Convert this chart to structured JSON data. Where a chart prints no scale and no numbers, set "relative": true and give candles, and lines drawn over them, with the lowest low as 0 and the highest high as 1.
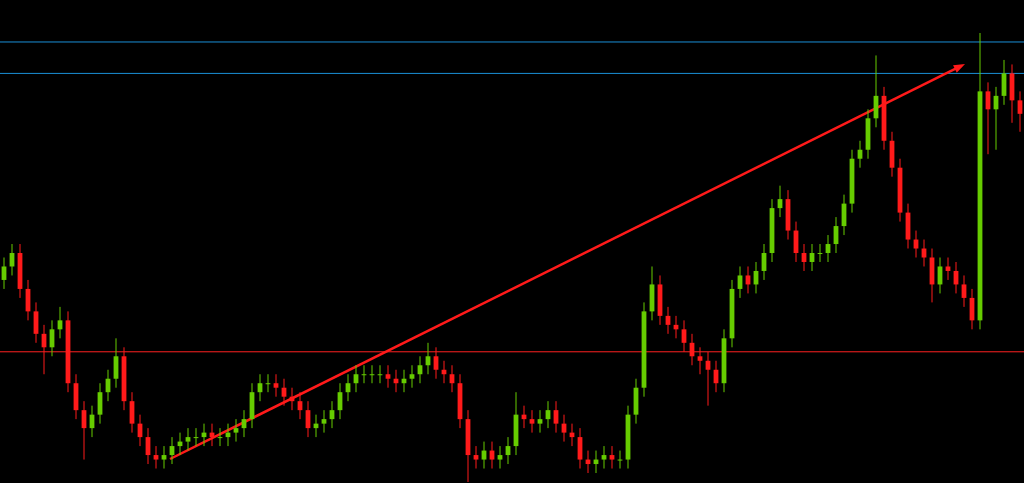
{
  "chart_data": {
    "type": "candlestick",
    "relative": true,
    "categories": [
      null,
      null,
      null,
      null,
      null,
      null,
      null,
      null,
      null,
      null,
      null,
      null,
      null,
      null,
      null,
      null,
      null,
      null,
      null,
      null,
      null,
      null,
      null,
      null,
      null,
      null,
      null,
      null,
      null,
      null,
      null,
      null,
      null,
      null,
      null,
      null,
      null,
      null,
      null,
      null,
      null,
      null,
      null,
      null,
      null,
      null,
      null,
      null,
      null,
      null,
      null,
      null,
      null,
      null,
      null,
      null,
      null,
      null,
      null,
      null,
      null,
      null,
      null,
      null,
      null,
      null,
      null,
      null,
      null,
      null,
      null,
      null,
      null,
      null,
      null,
      null,
      null,
      null,
      null,
      null,
      null,
      null,
      null,
      null,
      null,
      null,
      null,
      null,
      null,
      null,
      null,
      null,
      null,
      null,
      null,
      null,
      null,
      null,
      null,
      null,
      null,
      null,
      null,
      null,
      null,
      null,
      null,
      null,
      null,
      null,
      null,
      null,
      null,
      null,
      null,
      null,
      null,
      null,
      null,
      null,
      null,
      null,
      null,
      null,
      null,
      null,
      null,
      null
    ],
    "ohlc": [
      [
        0.45,
        0.5,
        0.43,
        0.48
      ],
      [
        0.48,
        0.53,
        0.46,
        0.51
      ],
      [
        0.51,
        0.53,
        0.41,
        0.43
      ],
      [
        0.43,
        0.45,
        0.36,
        0.38
      ],
      [
        0.38,
        0.4,
        0.31,
        0.33
      ],
      [
        0.33,
        0.35,
        0.24,
        0.3
      ],
      [
        0.3,
        0.36,
        0.28,
        0.34
      ],
      [
        0.34,
        0.39,
        0.32,
        0.36
      ],
      [
        0.36,
        0.38,
        0.2,
        0.22
      ],
      [
        0.22,
        0.24,
        0.14,
        0.16
      ],
      [
        0.16,
        0.18,
        0.05,
        0.12
      ],
      [
        0.12,
        0.17,
        0.1,
        0.15
      ],
      [
        0.15,
        0.22,
        0.13,
        0.2
      ],
      [
        0.2,
        0.25,
        0.18,
        0.23
      ],
      [
        0.23,
        0.32,
        0.21,
        0.28
      ],
      [
        0.28,
        0.3,
        0.16,
        0.18
      ],
      [
        0.18,
        0.2,
        0.11,
        0.13
      ],
      [
        0.13,
        0.15,
        0.08,
        0.1
      ],
      [
        0.1,
        0.12,
        0.04,
        0.06
      ],
      [
        0.06,
        0.08,
        0.03,
        0.05
      ],
      [
        0.05,
        0.08,
        0.03,
        0.06
      ],
      [
        0.06,
        0.1,
        0.04,
        0.08
      ],
      [
        0.08,
        0.11,
        0.06,
        0.09
      ],
      [
        0.09,
        0.12,
        0.07,
        0.1
      ],
      [
        0.1,
        0.12,
        0.08,
        0.1
      ],
      [
        0.1,
        0.13,
        0.08,
        0.11
      ],
      [
        0.11,
        0.13,
        0.08,
        0.1
      ],
      [
        0.1,
        0.12,
        0.08,
        0.1
      ],
      [
        0.1,
        0.13,
        0.08,
        0.11
      ],
      [
        0.11,
        0.14,
        0.09,
        0.12
      ],
      [
        0.12,
        0.16,
        0.1,
        0.14
      ],
      [
        0.14,
        0.22,
        0.12,
        0.2
      ],
      [
        0.2,
        0.24,
        0.18,
        0.22
      ],
      [
        0.22,
        0.24,
        0.2,
        0.22
      ],
      [
        0.22,
        0.24,
        0.19,
        0.21
      ],
      [
        0.21,
        0.23,
        0.17,
        0.19
      ],
      [
        0.19,
        0.21,
        0.16,
        0.18
      ],
      [
        0.18,
        0.2,
        0.14,
        0.16
      ],
      [
        0.16,
        0.18,
        0.1,
        0.12
      ],
      [
        0.12,
        0.15,
        0.1,
        0.13
      ],
      [
        0.13,
        0.16,
        0.11,
        0.14
      ],
      [
        0.14,
        0.18,
        0.12,
        0.16
      ],
      [
        0.16,
        0.22,
        0.14,
        0.2
      ],
      [
        0.2,
        0.24,
        0.18,
        0.22
      ],
      [
        0.22,
        0.26,
        0.2,
        0.24
      ],
      [
        0.24,
        0.26,
        0.22,
        0.24
      ],
      [
        0.24,
        0.26,
        0.22,
        0.24
      ],
      [
        0.24,
        0.26,
        0.22,
        0.24
      ],
      [
        0.24,
        0.26,
        0.21,
        0.23
      ],
      [
        0.23,
        0.25,
        0.2,
        0.22
      ],
      [
        0.22,
        0.25,
        0.2,
        0.23
      ],
      [
        0.23,
        0.26,
        0.21,
        0.24
      ],
      [
        0.24,
        0.28,
        0.22,
        0.26
      ],
      [
        0.26,
        0.31,
        0.24,
        0.28
      ],
      [
        0.28,
        0.3,
        0.23,
        0.25
      ],
      [
        0.25,
        0.27,
        0.22,
        0.24
      ],
      [
        0.24,
        0.26,
        0.2,
        0.22
      ],
      [
        0.22,
        0.24,
        0.12,
        0.14
      ],
      [
        0.14,
        0.16,
        0.0,
        0.06
      ],
      [
        0.06,
        0.08,
        0.03,
        0.05
      ],
      [
        0.05,
        0.09,
        0.03,
        0.07
      ],
      [
        0.07,
        0.09,
        0.03,
        0.05
      ],
      [
        0.05,
        0.08,
        0.03,
        0.06
      ],
      [
        0.06,
        0.1,
        0.04,
        0.08
      ],
      [
        0.08,
        0.2,
        0.06,
        0.15
      ],
      [
        0.15,
        0.17,
        0.12,
        0.14
      ],
      [
        0.14,
        0.16,
        0.11,
        0.13
      ],
      [
        0.13,
        0.16,
        0.11,
        0.14
      ],
      [
        0.14,
        0.18,
        0.12,
        0.16
      ],
      [
        0.16,
        0.18,
        0.11,
        0.13
      ],
      [
        0.13,
        0.15,
        0.09,
        0.11
      ],
      [
        0.11,
        0.13,
        0.08,
        0.1
      ],
      [
        0.1,
        0.12,
        0.03,
        0.05
      ],
      [
        0.05,
        0.07,
        0.02,
        0.04
      ],
      [
        0.04,
        0.07,
        0.02,
        0.05
      ],
      [
        0.05,
        0.08,
        0.03,
        0.06
      ],
      [
        0.06,
        0.08,
        0.03,
        0.05
      ],
      [
        0.05,
        0.07,
        0.03,
        0.05
      ],
      [
        0.05,
        0.17,
        0.03,
        0.15
      ],
      [
        0.15,
        0.23,
        0.13,
        0.21
      ],
      [
        0.21,
        0.4,
        0.19,
        0.38
      ],
      [
        0.38,
        0.48,
        0.36,
        0.44
      ],
      [
        0.44,
        0.46,
        0.35,
        0.37
      ],
      [
        0.37,
        0.39,
        0.33,
        0.35
      ],
      [
        0.35,
        0.37,
        0.32,
        0.34
      ],
      [
        0.34,
        0.36,
        0.29,
        0.31
      ],
      [
        0.31,
        0.33,
        0.26,
        0.28
      ],
      [
        0.28,
        0.3,
        0.24,
        0.27
      ],
      [
        0.27,
        0.29,
        0.17,
        0.25
      ],
      [
        0.25,
        0.27,
        0.2,
        0.22
      ],
      [
        0.22,
        0.34,
        0.2,
        0.32
      ],
      [
        0.32,
        0.45,
        0.3,
        0.43
      ],
      [
        0.43,
        0.48,
        0.41,
        0.46
      ],
      [
        0.46,
        0.48,
        0.42,
        0.44
      ],
      [
        0.44,
        0.49,
        0.42,
        0.47
      ],
      [
        0.47,
        0.53,
        0.45,
        0.51
      ],
      [
        0.51,
        0.63,
        0.49,
        0.61
      ],
      [
        0.61,
        0.66,
        0.59,
        0.63
      ],
      [
        0.63,
        0.65,
        0.54,
        0.56
      ],
      [
        0.56,
        0.58,
        0.49,
        0.51
      ],
      [
        0.51,
        0.53,
        0.47,
        0.49
      ],
      [
        0.49,
        0.53,
        0.47,
        0.51
      ],
      [
        0.51,
        0.53,
        0.49,
        0.51
      ],
      [
        0.51,
        0.55,
        0.49,
        0.53
      ],
      [
        0.53,
        0.59,
        0.51,
        0.57
      ],
      [
        0.57,
        0.64,
        0.55,
        0.62
      ],
      [
        0.62,
        0.74,
        0.6,
        0.72
      ],
      [
        0.72,
        0.76,
        0.7,
        0.74
      ],
      [
        0.74,
        0.83,
        0.72,
        0.81
      ],
      [
        0.81,
        0.95,
        0.79,
        0.86
      ],
      [
        0.86,
        0.88,
        0.74,
        0.76
      ],
      [
        0.76,
        0.78,
        0.68,
        0.7
      ],
      [
        0.7,
        0.72,
        0.58,
        0.6
      ],
      [
        0.6,
        0.62,
        0.52,
        0.54
      ],
      [
        0.54,
        0.56,
        0.5,
        0.52
      ],
      [
        0.52,
        0.54,
        0.48,
        0.5
      ],
      [
        0.5,
        0.52,
        0.4,
        0.44
      ],
      [
        0.44,
        0.5,
        0.42,
        0.48
      ],
      [
        0.48,
        0.5,
        0.45,
        0.47
      ],
      [
        0.47,
        0.49,
        0.42,
        0.44
      ],
      [
        0.44,
        0.46,
        0.39,
        0.41
      ],
      [
        0.41,
        0.43,
        0.34,
        0.36
      ],
      [
        0.36,
        1.0,
        0.34,
        0.87
      ],
      [
        0.87,
        0.89,
        0.73,
        0.83
      ],
      [
        0.83,
        0.88,
        0.74,
        0.86
      ],
      [
        0.86,
        0.94,
        0.84,
        0.91
      ],
      [
        0.91,
        0.93,
        0.8,
        0.85
      ],
      [
        0.85,
        0.87,
        0.78,
        0.82
      ]
    ],
    "ref_lines": [
      {
        "axis": "y",
        "value": 0.98,
        "color": "#1a8fd6"
      },
      {
        "axis": "y",
        "value": 0.91,
        "color": "#1a8fd6"
      },
      {
        "axis": "y",
        "value": 0.29,
        "color": "#ff2020"
      }
    ]
  }
}
